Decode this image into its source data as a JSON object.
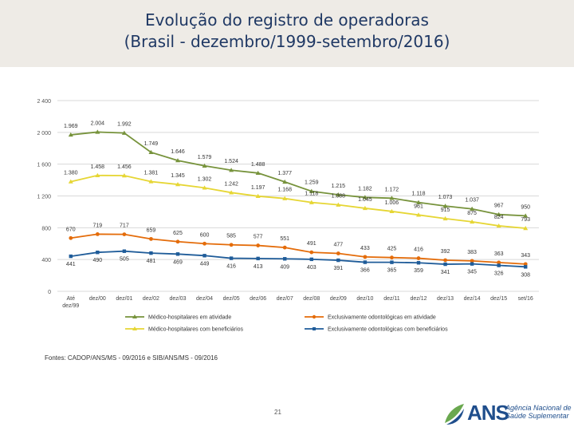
{
  "title": {
    "line1": "Evolução do registro de operadoras",
    "line2": "(Brasil - dezembro/1999-setembro/2016)"
  },
  "source": "Fontes: CADOP/ANS/MS - 09/2016 e SIB/ANS/MS - 09/2016",
  "page_number": "21",
  "logo": {
    "text": "ANS",
    "subtitle_line1": "Agência Nacional de",
    "subtitle_line2": "Saúde Suplementar"
  },
  "colors": {
    "series1": "#77933c",
    "series2": "#e6d634",
    "series3": "#e46c0a",
    "series4": "#1f5c99",
    "grid": "#d9d9d9",
    "title": "#1f3864"
  },
  "chart_data": {
    "type": "line",
    "categories": [
      "Até dez/99",
      "dez/00",
      "dez/01",
      "dez/02",
      "dez/03",
      "dez/04",
      "dez/05",
      "dez/06",
      "dez/07",
      "dez/08",
      "dez/09",
      "dez/10",
      "dez/11",
      "dez/12",
      "dez/13",
      "dez/14",
      "dez/15",
      "set/16"
    ],
    "yticks": [
      "0",
      "400",
      "800",
      "1 200",
      "1 600",
      "2 000",
      "2 400"
    ],
    "ylim": [
      0,
      2400
    ],
    "grid": true,
    "legend_position": "bottom",
    "series": [
      {
        "name": "Médico-hospitalares em atividade",
        "values": [
          1969,
          2004,
          1992,
          1749,
          1646,
          1579,
          1524,
          1488,
          1377,
          1259,
          1215,
          1182,
          1172,
          1118,
          1073,
          1037,
          967,
          950
        ],
        "labels": [
          "1.969",
          "2.004",
          "1.992",
          "1.749",
          "1.646",
          "1.579",
          "1.524",
          "1.488",
          "1.377",
          "1.259",
          "1.215",
          "1.182",
          "1.172",
          "1.118",
          "1.073",
          "1.037",
          "967",
          "950"
        ]
      },
      {
        "name": "Médico-hospitalares com beneficiários",
        "values": [
          1380,
          1458,
          1456,
          1381,
          1345,
          1302,
          1242,
          1197,
          1168,
          1118,
          1088,
          1045,
          1006,
          961,
          915,
          875,
          824,
          793
        ],
        "labels": [
          "1.380",
          "1.458",
          "1.456",
          "1.381",
          "1.345",
          "1.302",
          "1.242",
          "1.197",
          "1.168",
          "1.118",
          "1.088",
          "1.045",
          "1.006",
          "961",
          "915",
          "875",
          "824",
          "793"
        ]
      },
      {
        "name": "Exclusivamente odontológicas em atividade",
        "values": [
          670,
          719,
          717,
          659,
          625,
          600,
          585,
          577,
          551,
          491,
          477,
          433,
          425,
          416,
          392,
          383,
          363,
          343
        ],
        "labels": [
          "670",
          "719",
          "717",
          "659",
          "625",
          "600",
          "585",
          "577",
          "551",
          "491",
          "477",
          "433",
          "425",
          "416",
          "392",
          "383",
          "363",
          "343"
        ]
      },
      {
        "name": "Exclusivamente odontológicas com beneficiários",
        "values": [
          441,
          490,
          505,
          481,
          469,
          449,
          416,
          413,
          409,
          403,
          391,
          366,
          365,
          359,
          341,
          345,
          326,
          308
        ],
        "labels": [
          "441",
          "490",
          "505",
          "481",
          "469",
          "449",
          "416",
          "413",
          "409",
          "403",
          "391",
          "366",
          "365",
          "359",
          "341",
          "345",
          "326",
          "308"
        ]
      }
    ]
  }
}
